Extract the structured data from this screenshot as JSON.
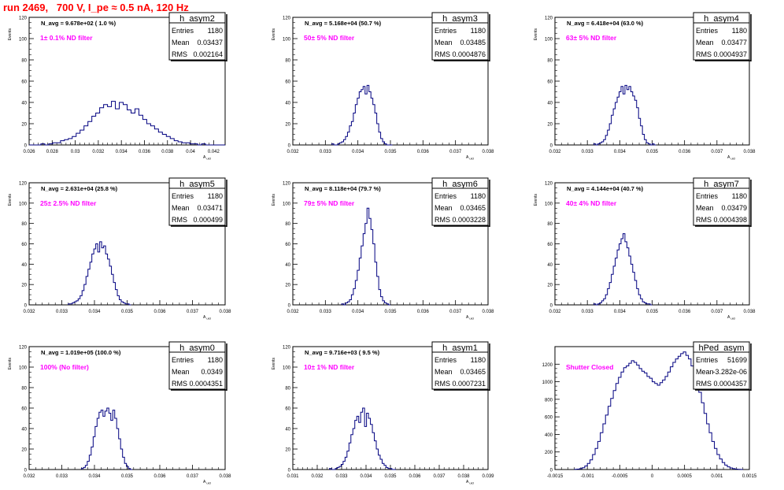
{
  "header": {
    "title": "run 2469,   700 V, I_pe ≈ 0.5 nA, 120 Hz"
  },
  "colors": {
    "title": "#ff0000",
    "annotation": "#ff00ff",
    "histogram": "#000080",
    "axis": "#000000"
  },
  "chart_data": [
    {
      "type": "histogram",
      "name": "h_asym2",
      "stats": {
        "entries_label": "Entries",
        "entries": "1180",
        "mean_label": "Mean",
        "mean": "0.03437",
        "rms_label": "RMS",
        "rms": "0.002164"
      },
      "navg": "N_avg = 9.678e+02 ( 1.0 %)",
      "annotation": "1± 0.1% ND filter",
      "ylabel": "Events",
      "xlabel": "A_uid",
      "xlim": [
        0.026,
        0.043
      ],
      "ylim": [
        0,
        120
      ],
      "xticks": [
        "0.026",
        "0.028",
        "0.03",
        "0.032",
        "0.034",
        "0.036",
        "0.038",
        "0.04",
        "0.042"
      ],
      "xtick_values": [
        0.026,
        0.028,
        0.03,
        0.032,
        0.034,
        0.036,
        0.038,
        0.04,
        0.042
      ],
      "yticks": [
        0,
        20,
        40,
        60,
        80,
        100,
        120
      ],
      "bins": {
        "start": 0.026,
        "step": 0.00034,
        "counts": [
          0,
          0,
          0,
          1,
          0,
          1,
          2,
          2,
          4,
          5,
          6,
          8,
          11,
          14,
          18,
          22,
          27,
          30,
          35,
          38,
          36,
          41,
          34,
          40,
          38,
          33,
          30,
          34,
          28,
          24,
          20,
          18,
          15,
          12,
          10,
          8,
          6,
          4,
          3,
          2,
          2,
          1,
          1,
          0,
          1,
          0,
          0,
          0,
          0,
          0
        ]
      }
    },
    {
      "type": "histogram",
      "name": "h_asym3",
      "stats": {
        "entries_label": "Entries",
        "entries": "1180",
        "mean_label": "Mean",
        "mean": "0.03485",
        "rms_label": "RMS",
        "rms": "0.0004876"
      },
      "navg": "N_avg = 5.168e+04 (50.7 %)",
      "annotation": "50± 5% ND filter",
      "ylabel": "Events",
      "xlabel": "A_uid",
      "xlim": [
        0.032,
        0.038
      ],
      "ylim": [
        0,
        120
      ],
      "xticks": [
        "0.032",
        "0.033",
        "0.034",
        "0.035",
        "0.036",
        "0.037",
        "0.038"
      ],
      "xtick_values": [
        0.032,
        0.033,
        0.034,
        0.035,
        0.036,
        0.037,
        0.038
      ],
      "yticks": [
        0,
        20,
        40,
        60,
        80,
        100,
        120
      ],
      "bins": {
        "start": 0.0332,
        "step": 6e-05,
        "counts": [
          1,
          0,
          0,
          1,
          2,
          3,
          5,
          8,
          12,
          18,
          22,
          30,
          38,
          44,
          50,
          52,
          55,
          48,
          56,
          50,
          44,
          38,
          30,
          20,
          12,
          6,
          3,
          1,
          0,
          0,
          0
        ]
      }
    },
    {
      "type": "histogram",
      "name": "h_asym4",
      "stats": {
        "entries_label": "Entries",
        "entries": "1180",
        "mean_label": "Mean",
        "mean": "0.03477",
        "rms_label": "RMS",
        "rms": "0.0004937"
      },
      "navg": "N_avg = 6.418e+04 (63.0 %)",
      "annotation": "63± 5% ND filter",
      "ylabel": "Events",
      "xlabel": "A_uid",
      "xlim": [
        0.032,
        0.038
      ],
      "ylim": [
        0,
        120
      ],
      "xticks": [
        "0.032",
        "0.033",
        "0.034",
        "0.035",
        "0.036",
        "0.037",
        "0.038"
      ],
      "xtick_values": [
        0.032,
        0.033,
        0.034,
        0.035,
        0.036,
        0.037,
        0.038
      ],
      "yticks": [
        0,
        20,
        40,
        60,
        80,
        100,
        120
      ],
      "bins": {
        "start": 0.0332,
        "step": 6e-05,
        "counts": [
          1,
          0,
          1,
          2,
          3,
          5,
          9,
          14,
          20,
          28,
          34,
          40,
          45,
          50,
          55,
          48,
          56,
          52,
          55,
          50,
          46,
          42,
          35,
          25,
          18,
          10,
          5,
          2,
          1,
          0,
          1,
          0
        ]
      }
    },
    {
      "type": "histogram",
      "name": "h_asym5",
      "stats": {
        "entries_label": "Entries",
        "entries": "1180",
        "mean_label": "Mean",
        "mean": "0.03471",
        "rms_label": "RMS",
        "rms": "0.000499"
      },
      "navg": "N_avg = 2.631e+04 (25.8 %)",
      "annotation": "25± 2.5% ND filter",
      "ylabel": "Events",
      "xlabel": "A_uid",
      "xlim": [
        0.032,
        0.038
      ],
      "ylim": [
        0,
        120
      ],
      "xticks": [
        "0.032",
        "0.033",
        "0.034",
        "0.035",
        "0.036",
        "0.037",
        "0.038"
      ],
      "xtick_values": [
        0.032,
        0.033,
        0.034,
        0.035,
        0.036,
        0.037,
        0.038
      ],
      "yticks": [
        0,
        20,
        40,
        60,
        80,
        100,
        120
      ],
      "bins": {
        "start": 0.0332,
        "step": 6e-05,
        "counts": [
          1,
          1,
          2,
          3,
          4,
          6,
          9,
          14,
          20,
          28,
          35,
          42,
          50,
          55,
          60,
          52,
          62,
          56,
          58,
          50,
          45,
          38,
          30,
          22,
          15,
          9,
          5,
          3,
          2,
          1,
          1,
          0
        ]
      }
    },
    {
      "type": "histogram",
      "name": "h_asym6",
      "stats": {
        "entries_label": "Entries",
        "entries": "1180",
        "mean_label": "Mean",
        "mean": "0.03465",
        "rms_label": "RMS",
        "rms": "0.0003228"
      },
      "navg": "N_avg = 8.118e+04 (79.7 %)",
      "annotation": "79± 5% ND filter",
      "ylabel": "Events",
      "xlabel": "A_uid",
      "xlim": [
        0.032,
        0.038
      ],
      "ylim": [
        0,
        120
      ],
      "xticks": [
        "0.032",
        "0.033",
        "0.034",
        "0.035",
        "0.036",
        "0.037",
        "0.038"
      ],
      "xtick_values": [
        0.032,
        0.033,
        0.034,
        0.035,
        0.036,
        0.037,
        0.038
      ],
      "yticks": [
        0,
        20,
        40,
        60,
        80,
        100,
        120
      ],
      "bins": {
        "start": 0.0335,
        "step": 6e-05,
        "counts": [
          1,
          0,
          2,
          3,
          5,
          10,
          16,
          24,
          34,
          46,
          58,
          70,
          80,
          95,
          85,
          74,
          60,
          42,
          28,
          15,
          8,
          4,
          2,
          1,
          0
        ]
      }
    },
    {
      "type": "histogram",
      "name": "h_asym7",
      "stats": {
        "entries_label": "Entries",
        "entries": "1180",
        "mean_label": "Mean",
        "mean": "0.03479",
        "rms_label": "RMS",
        "rms": "0.0004398"
      },
      "navg": "N_avg = 4.144e+04 (40.7 %)",
      "annotation": "40± 4% ND filter",
      "ylabel": "Events",
      "xlabel": "A_uid",
      "xlim": [
        0.032,
        0.038
      ],
      "ylim": [
        0,
        120
      ],
      "xticks": [
        "0.032",
        "0.033",
        "0.034",
        "0.035",
        "0.036",
        "0.037",
        "0.038"
      ],
      "xtick_values": [
        0.032,
        0.033,
        0.034,
        0.035,
        0.036,
        0.037,
        0.038
      ],
      "yticks": [
        0,
        20,
        40,
        60,
        80,
        100,
        120
      ],
      "bins": {
        "start": 0.0332,
        "step": 6e-05,
        "counts": [
          1,
          0,
          1,
          2,
          4,
          6,
          10,
          16,
          22,
          30,
          38,
          46,
          54,
          60,
          65,
          70,
          62,
          56,
          48,
          40,
          32,
          24,
          16,
          10,
          6,
          3,
          2,
          1,
          1,
          0
        ]
      }
    },
    {
      "type": "histogram",
      "name": "h_asym0",
      "stats": {
        "entries_label": "Entries",
        "entries": "1180",
        "mean_label": "Mean",
        "mean": "0.0349",
        "rms_label": "RMS",
        "rms": "0.0004351"
      },
      "navg": "N_avg = 1.019e+05 (100.0 %)",
      "annotation": "100% (No filter)",
      "ylabel": "Events",
      "xlabel": "A_uid",
      "xlim": [
        0.032,
        0.038
      ],
      "ylim": [
        0,
        120
      ],
      "xticks": [
        "0.032",
        "0.033",
        "0.034",
        "0.035",
        "0.036",
        "0.037",
        "0.038"
      ],
      "xtick_values": [
        0.032,
        0.033,
        0.034,
        0.035,
        0.036,
        0.037,
        0.038
      ],
      "yticks": [
        0,
        20,
        40,
        60,
        80,
        100,
        120
      ],
      "bins": {
        "start": 0.0336,
        "step": 6e-05,
        "counts": [
          1,
          2,
          4,
          8,
          14,
          22,
          32,
          42,
          50,
          56,
          58,
          52,
          57,
          60,
          55,
          48,
          58,
          50,
          40,
          30,
          20,
          12,
          6,
          3,
          1,
          0
        ]
      }
    },
    {
      "type": "histogram",
      "name": "h_asym1",
      "stats": {
        "entries_label": "Entries",
        "entries": "1180",
        "mean_label": "Mean",
        "mean": "0.03465",
        "rms_label": "RMS",
        "rms": "0.0007231"
      },
      "navg": "N_avg = 9.716e+03 ( 9.5 %)",
      "annotation": "10± 1% ND filter",
      "ylabel": "Events",
      "xlabel": "A_uid",
      "xlim": [
        0.031,
        0.039
      ],
      "ylim": [
        0,
        120
      ],
      "xticks": [
        "0.031",
        "0.032",
        "0.033",
        "0.034",
        "0.035",
        "0.036",
        "0.037",
        "0.038",
        "0.039"
      ],
      "xtick_values": [
        0.031,
        0.032,
        0.033,
        0.034,
        0.035,
        0.036,
        0.037,
        0.038,
        0.039
      ],
      "yticks": [
        0,
        20,
        40,
        60,
        80,
        100,
        120
      ],
      "bins": {
        "start": 0.0325,
        "step": 8e-05,
        "counts": [
          1,
          0,
          0,
          1,
          2,
          3,
          5,
          8,
          12,
          18,
          26,
          34,
          40,
          48,
          52,
          46,
          56,
          60,
          42,
          55,
          50,
          44,
          36,
          28,
          20,
          14,
          10,
          6,
          4,
          2,
          1,
          1,
          0,
          0
        ]
      }
    },
    {
      "type": "histogram",
      "name": "hPed_asym",
      "stats": {
        "entries_label": "Entries",
        "entries": "51699",
        "mean_label": "Mean",
        "mean": "-3.282e-06",
        "rms_label": "RMS",
        "rms": "0.0004357"
      },
      "navg": "",
      "annotation": "Shutter Closed",
      "ylabel": "",
      "xlabel": "",
      "xlim": [
        -0.0015,
        0.0015
      ],
      "ylim": [
        0,
        1400
      ],
      "xticks": [
        "-0.0015",
        "-0.001",
        "-0.0005",
        "0",
        "0.0005",
        "0.001",
        "0.0015"
      ],
      "xtick_values": [
        -0.0015,
        -0.001,
        -0.0005,
        0,
        0.0005,
        0.001,
        0.0015
      ],
      "yticks": [
        0,
        200,
        400,
        600,
        800,
        1000,
        1200
      ],
      "bins": {
        "start": -0.0012,
        "step": 4e-05,
        "counts": [
          2,
          5,
          10,
          20,
          40,
          70,
          110,
          170,
          240,
          320,
          420,
          520,
          620,
          720,
          810,
          900,
          980,
          1050,
          1110,
          1160,
          1180,
          1210,
          1240,
          1220,
          1190,
          1150,
          1120,
          1100,
          1060,
          1040,
          1000,
          980,
          960,
          990,
          1020,
          1060,
          1110,
          1170,
          1220,
          1260,
          1290,
          1320,
          1340,
          1300,
          1260,
          1180,
          1100,
          1000,
          880,
          760,
          640,
          520,
          420,
          320,
          240,
          170,
          120,
          80,
          50,
          30,
          18,
          10,
          5,
          2,
          1
        ]
      }
    }
  ]
}
